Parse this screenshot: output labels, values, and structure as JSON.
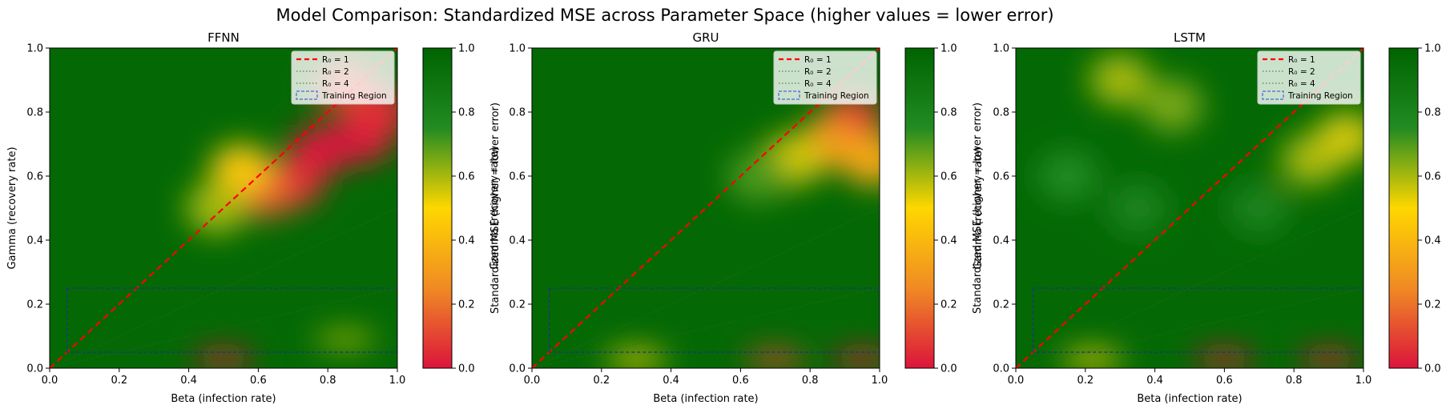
{
  "suptitle": "Model Comparison: Standardized MSE across Parameter Space (higher values = lower error)",
  "colors": {
    "low": "#dc143c",
    "orange": "#f08a24",
    "mid": "#ffd700",
    "green": "#228b22",
    "high": "#006400",
    "r0_1": "#ff0000",
    "r0_other": "#2d6a2d",
    "training": "#1e2f8f",
    "legend_training_swatch": "#4169e1"
  },
  "chart_data": [
    {
      "type": "heatmap",
      "title": "FFNN",
      "xlabel": "Beta (infection rate)",
      "ylabel": "Gamma (recovery rate)",
      "xlim": [
        0,
        1
      ],
      "ylim": [
        0,
        1
      ],
      "xticks": [
        "0.0",
        "0.2",
        "0.4",
        "0.6",
        "0.8",
        "1.0"
      ],
      "yticks": [
        "0.0",
        "0.2",
        "0.4",
        "0.6",
        "0.8",
        "1.0"
      ],
      "colorbar": {
        "label": "Standardized MSE (higher = lower error)",
        "range": [
          0,
          1
        ],
        "ticks": [
          "0.0",
          "0.2",
          "0.4",
          "0.6",
          "0.8",
          "1.0"
        ]
      },
      "legend": {
        "position": "top-right",
        "entries": [
          "R₀ = 1",
          "R₀ = 2",
          "R₀ = 4",
          "Training Region"
        ]
      },
      "lines": [
        {
          "label": "R₀ = 1",
          "slope": 1
        },
        {
          "label": "R₀ = 2",
          "slope": 0.5
        },
        {
          "label": "R₀ = 4",
          "slope": 0.25
        }
      ],
      "training_region": {
        "beta": [
          0.05,
          1.0
        ],
        "gamma": [
          0.05,
          0.25
        ]
      },
      "low_regions": [
        {
          "beta": 0.78,
          "gamma": 0.68,
          "value": 0.0
        },
        {
          "beta": 0.9,
          "gamma": 0.72,
          "value": 0.0
        },
        {
          "beta": 0.95,
          "gamma": 0.8,
          "value": 0.05
        },
        {
          "beta": 0.7,
          "gamma": 0.58,
          "value": 0.05
        },
        {
          "beta": 0.62,
          "gamma": 0.55,
          "value": 0.15
        },
        {
          "beta": 0.55,
          "gamma": 0.62,
          "value": 0.45
        },
        {
          "beta": 0.48,
          "gamma": 0.5,
          "value": 0.6
        },
        {
          "beta": 0.85,
          "gamma": 0.88,
          "value": 0.1
        },
        {
          "beta": 0.5,
          "gamma": 0.03,
          "value": 0.0
        },
        {
          "beta": 0.85,
          "gamma": 0.09,
          "value": 0.6
        }
      ]
    },
    {
      "type": "heatmap",
      "title": "GRU",
      "xlabel": "Beta (infection rate)",
      "ylabel": "Gamma (recovery rate)",
      "xlim": [
        0,
        1
      ],
      "ylim": [
        0,
        1
      ],
      "xticks": [
        "0.0",
        "0.2",
        "0.4",
        "0.6",
        "0.8",
        "1.0"
      ],
      "yticks": [
        "0.0",
        "0.2",
        "0.4",
        "0.6",
        "0.8",
        "1.0"
      ],
      "colorbar": {
        "label": "Standardized MSE (higher = lower error)",
        "range": [
          0,
          1
        ],
        "ticks": [
          "0.0",
          "0.2",
          "0.4",
          "0.6",
          "0.8",
          "1.0"
        ]
      },
      "legend": {
        "position": "top-right",
        "entries": [
          "R₀ = 1",
          "R₀ = 2",
          "R₀ = 4",
          "Training Region"
        ]
      },
      "lines": [
        {
          "label": "R₀ = 1",
          "slope": 1
        },
        {
          "label": "R₀ = 2",
          "slope": 0.5
        },
        {
          "label": "R₀ = 4",
          "slope": 0.25
        }
      ],
      "training_region": {
        "beta": [
          0.05,
          1.0
        ],
        "gamma": [
          0.05,
          0.25
        ]
      },
      "low_regions": [
        {
          "beta": 0.92,
          "gamma": 0.78,
          "value": 0.1
        },
        {
          "beta": 0.85,
          "gamma": 0.7,
          "value": 0.3
        },
        {
          "beta": 0.75,
          "gamma": 0.65,
          "value": 0.55
        },
        {
          "beta": 0.98,
          "gamma": 0.65,
          "value": 0.35
        },
        {
          "beta": 0.65,
          "gamma": 0.6,
          "value": 0.7
        },
        {
          "beta": 0.3,
          "gamma": 0.03,
          "value": 0.5
        },
        {
          "beta": 0.7,
          "gamma": 0.03,
          "value": 0.1
        },
        {
          "beta": 0.95,
          "gamma": 0.03,
          "value": 0.0
        }
      ]
    },
    {
      "type": "heatmap",
      "title": "LSTM",
      "xlabel": "Beta (infection rate)",
      "ylabel": "Gamma (recovery rate)",
      "xlim": [
        0,
        1
      ],
      "ylim": [
        0,
        1
      ],
      "xticks": [
        "0.0",
        "0.2",
        "0.4",
        "0.6",
        "0.8",
        "1.0"
      ],
      "yticks": [
        "0.0",
        "0.2",
        "0.4",
        "0.6",
        "0.8",
        "1.0"
      ],
      "colorbar": {
        "label": "Standardized MSE (higher = lower error)",
        "range": [
          0,
          1
        ],
        "ticks": [
          "0.0",
          "0.2",
          "0.4",
          "0.6",
          "0.8",
          "1.0"
        ]
      },
      "legend": {
        "position": "top-right",
        "entries": [
          "R₀ = 1",
          "R₀ = 2",
          "R₀ = 4",
          "Training Region"
        ]
      },
      "lines": [
        {
          "label": "R₀ = 1",
          "slope": 1
        },
        {
          "label": "R₀ = 2",
          "slope": 0.5
        },
        {
          "label": "R₀ = 4",
          "slope": 0.25
        }
      ],
      "training_region": {
        "beta": [
          0.05,
          1.0
        ],
        "gamma": [
          0.05,
          0.25
        ]
      },
      "low_regions": [
        {
          "beta": 0.3,
          "gamma": 0.9,
          "value": 0.6
        },
        {
          "beta": 0.45,
          "gamma": 0.82,
          "value": 0.65
        },
        {
          "beta": 0.15,
          "gamma": 0.6,
          "value": 0.75
        },
        {
          "beta": 0.35,
          "gamma": 0.5,
          "value": 0.8
        },
        {
          "beta": 0.85,
          "gamma": 0.65,
          "value": 0.6
        },
        {
          "beta": 0.95,
          "gamma": 0.72,
          "value": 0.55
        },
        {
          "beta": 0.7,
          "gamma": 0.5,
          "value": 0.8
        },
        {
          "beta": 0.22,
          "gamma": 0.03,
          "value": 0.5
        },
        {
          "beta": 0.6,
          "gamma": 0.03,
          "value": 0.0
        },
        {
          "beta": 0.9,
          "gamma": 0.03,
          "value": 0.0
        }
      ]
    }
  ]
}
